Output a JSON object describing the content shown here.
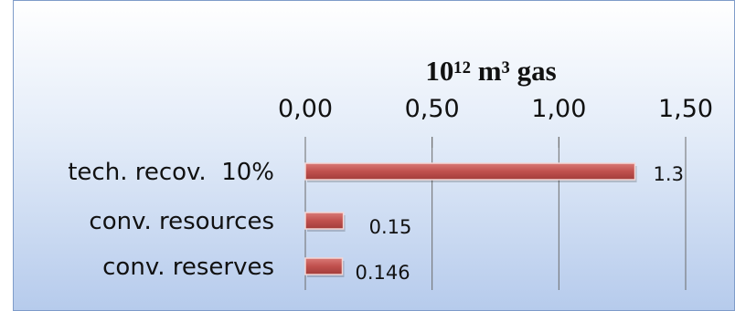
{
  "chart_data": {
    "type": "bar",
    "orientation": "horizontal",
    "title": "10¹² m³ gas",
    "categories": [
      "tech. recov.  10%",
      "conv. resources",
      "conv. reserves"
    ],
    "values": [
      1.3,
      0.15,
      0.146
    ],
    "data_labels": [
      "1.3",
      "0.15",
      "0.146"
    ],
    "x_ticks": [
      "0,00",
      "0,50",
      "1,00",
      "1,50"
    ],
    "xlim": [
      0,
      1.5
    ],
    "axis_position": "top",
    "grid": true,
    "bar_color": "#c0504d"
  }
}
